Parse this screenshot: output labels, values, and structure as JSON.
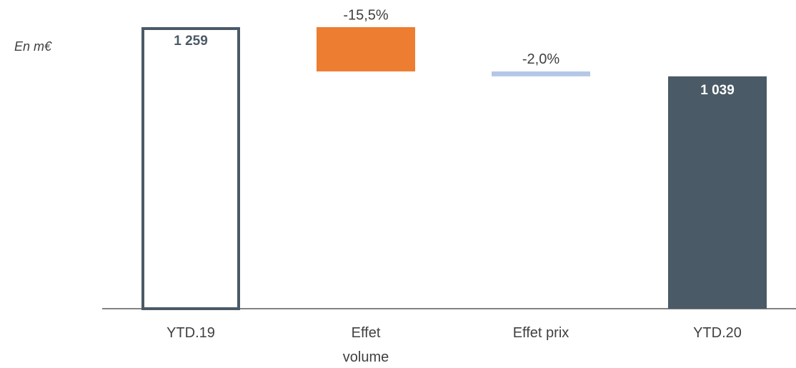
{
  "chart_data": {
    "type": "waterfall",
    "unit_label": "En m€",
    "categories": [
      "YTD.19",
      "Effet volume",
      "Effet prix",
      "YTD.20"
    ],
    "values": [
      1259,
      -198,
      -22,
      1039
    ],
    "value_labels": [
      "1 259",
      null,
      null,
      "1 039"
    ],
    "kinds": [
      "total",
      "delta",
      "delta",
      "total"
    ],
    "annotations": [
      null,
      "-15,5%",
      "-2,0%",
      null
    ],
    "colors": [
      "#ffffff",
      "#ed7d31",
      "#b4c7e7",
      "#4a5a66"
    ],
    "outline": "#4a5a66"
  }
}
